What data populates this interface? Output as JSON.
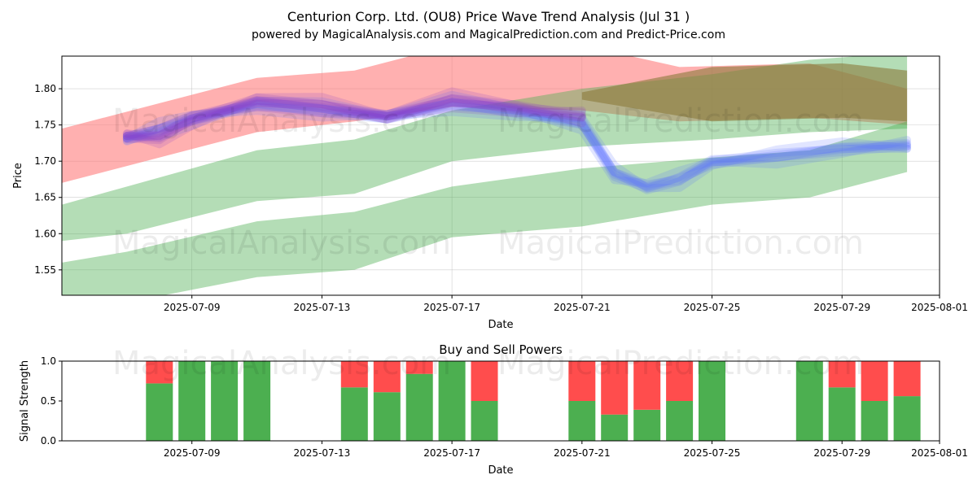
{
  "header": {
    "title": "Centurion Corp. Ltd. (OU8) Price Wave Trend Analysis (Jul 31 )",
    "subtitle": "powered by MagicalAnalysis.com and MagicalPrediction.com and Predict-Price.com"
  },
  "watermarks": [
    "MagicalAnalysis.com",
    "MagicalPrediction.com"
  ],
  "colors": {
    "red_band": "#ff6f6f",
    "green_band": "#4caf50",
    "blue_wave": "#5a6eff",
    "purple_wave": "#8a3cc8",
    "buy": "#4caf50",
    "sell": "#ff4d4d"
  },
  "chart_data": [
    {
      "type": "area",
      "title": "",
      "xlabel": "Date",
      "ylabel": "Price",
      "xlim": [
        "2025-07-05",
        "2025-08-01"
      ],
      "ylim": [
        1.515,
        1.845
      ],
      "x_ticks": [
        "2025-07-09",
        "2025-07-13",
        "2025-07-17",
        "2025-07-21",
        "2025-07-25",
        "2025-07-29",
        "2025-08-01"
      ],
      "y_ticks": [
        1.55,
        1.6,
        1.65,
        1.7,
        1.75,
        1.8
      ],
      "grid": true,
      "bands": [
        {
          "color": "red",
          "x": [
            "2025-07-05",
            "2025-07-11",
            "2025-07-14",
            "2025-07-17",
            "2025-07-21",
            "2025-07-24",
            "2025-07-28",
            "2025-07-31"
          ],
          "upper": [
            1.745,
            1.815,
            1.825,
            1.86,
            1.86,
            1.83,
            1.835,
            1.8
          ],
          "lower": [
            1.67,
            1.74,
            1.755,
            1.775,
            1.77,
            1.755,
            1.76,
            1.75
          ]
        },
        {
          "color": "green",
          "x": [
            "2025-07-05",
            "2025-07-07",
            "2025-07-11",
            "2025-07-14",
            "2025-07-17",
            "2025-07-21",
            "2025-07-25",
            "2025-07-28",
            "2025-07-31"
          ],
          "upper": [
            1.64,
            1.665,
            1.715,
            1.73,
            1.77,
            1.8,
            1.82,
            1.84,
            1.85
          ],
          "lower": [
            1.59,
            1.6,
            1.645,
            1.655,
            1.7,
            1.72,
            1.73,
            1.74,
            1.745
          ]
        },
        {
          "color": "green",
          "x": [
            "2025-07-05",
            "2025-07-07",
            "2025-07-11",
            "2025-07-14",
            "2025-07-17",
            "2025-07-21",
            "2025-07-25",
            "2025-07-28",
            "2025-07-31"
          ],
          "upper": [
            1.56,
            1.575,
            1.617,
            1.63,
            1.665,
            1.69,
            1.705,
            1.715,
            1.755
          ],
          "lower": [
            1.51,
            1.505,
            1.54,
            1.55,
            1.595,
            1.61,
            1.64,
            1.65,
            1.685
          ]
        },
        {
          "color": "olive",
          "x": [
            "2025-07-21",
            "2025-07-25",
            "2025-07-29",
            "2025-07-31"
          ],
          "upper": [
            1.795,
            1.83,
            1.835,
            1.825
          ],
          "lower": [
            1.785,
            1.755,
            1.76,
            1.755
          ]
        }
      ],
      "waves": {
        "x": [
          "2025-07-07",
          "2025-07-08",
          "2025-07-09",
          "2025-07-11",
          "2025-07-13",
          "2025-07-15",
          "2025-07-17",
          "2025-07-19",
          "2025-07-21",
          "2025-07-22",
          "2025-07-23",
          "2025-07-24",
          "2025-07-25",
          "2025-07-27",
          "2025-07-29",
          "2025-07-31"
        ],
        "purple": [
          1.738,
          1.735,
          1.755,
          1.78,
          1.778,
          1.765,
          1.785,
          1.77,
          1.76
        ],
        "blue": [
          1.735,
          1.745,
          1.755,
          1.775,
          1.772,
          1.765,
          1.78,
          1.765,
          1.75,
          1.685,
          1.668,
          1.675,
          1.695,
          1.705,
          1.72,
          1.725
        ]
      }
    },
    {
      "type": "bar",
      "title": "Buy and Sell Powers",
      "xlabel": "Date",
      "ylabel": "Signal Strength",
      "ylim": [
        0,
        1.0
      ],
      "y_ticks": [
        0.0,
        0.5,
        1.0
      ],
      "x_ticks": [
        "2025-07-09",
        "2025-07-13",
        "2025-07-17",
        "2025-07-21",
        "2025-07-25",
        "2025-07-29",
        "2025-08-01"
      ],
      "categories": [
        "2025-07-08",
        "2025-07-09",
        "2025-07-10",
        "2025-07-11",
        "2025-07-14",
        "2025-07-15",
        "2025-07-16",
        "2025-07-17",
        "2025-07-18",
        "2025-07-21",
        "2025-07-22",
        "2025-07-23",
        "2025-07-24",
        "2025-07-25",
        "2025-07-28",
        "2025-07-29",
        "2025-07-30",
        "2025-07-31"
      ],
      "series": [
        {
          "name": "buy",
          "values": [
            0.72,
            1.0,
            1.0,
            1.0,
            0.67,
            0.61,
            0.84,
            1.0,
            0.5,
            0.5,
            0.33,
            0.39,
            0.5,
            1.0,
            1.0,
            0.67,
            0.5,
            0.56
          ]
        },
        {
          "name": "sell",
          "values": [
            0.28,
            0.0,
            0.0,
            0.0,
            0.33,
            0.39,
            0.16,
            0.0,
            0.5,
            0.5,
            0.67,
            0.61,
            0.5,
            0.0,
            0.0,
            0.33,
            0.5,
            0.44
          ]
        }
      ]
    }
  ]
}
